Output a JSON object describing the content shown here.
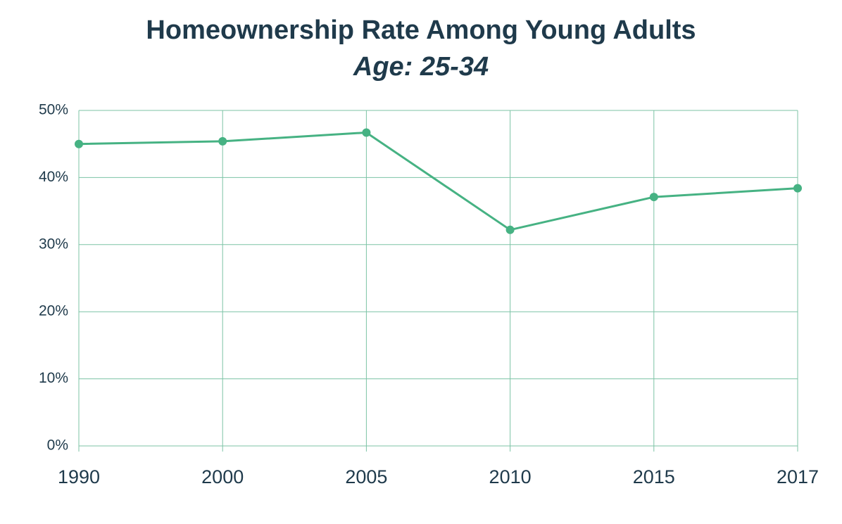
{
  "chart_data": {
    "type": "line",
    "title": "Homeownership Rate Among Young Adults",
    "subtitle": "Age: 25-34",
    "categories": [
      "1990",
      "2000",
      "2005",
      "2010",
      "2015",
      "2017"
    ],
    "series": [
      {
        "name": "Homeownership rate",
        "color": "#46b283",
        "values": [
          45.0,
          45.4,
          46.7,
          32.2,
          37.1,
          38.4
        ]
      }
    ],
    "ylim": [
      0,
      50
    ],
    "yticks": [
      {
        "value": 0,
        "label": "0%"
      },
      {
        "value": 10,
        "label": "10%"
      },
      {
        "value": 20,
        "label": "20%"
      },
      {
        "value": 30,
        "label": "30%"
      },
      {
        "value": 40,
        "label": "40%"
      },
      {
        "value": 50,
        "label": "50%"
      }
    ],
    "grid": true
  }
}
